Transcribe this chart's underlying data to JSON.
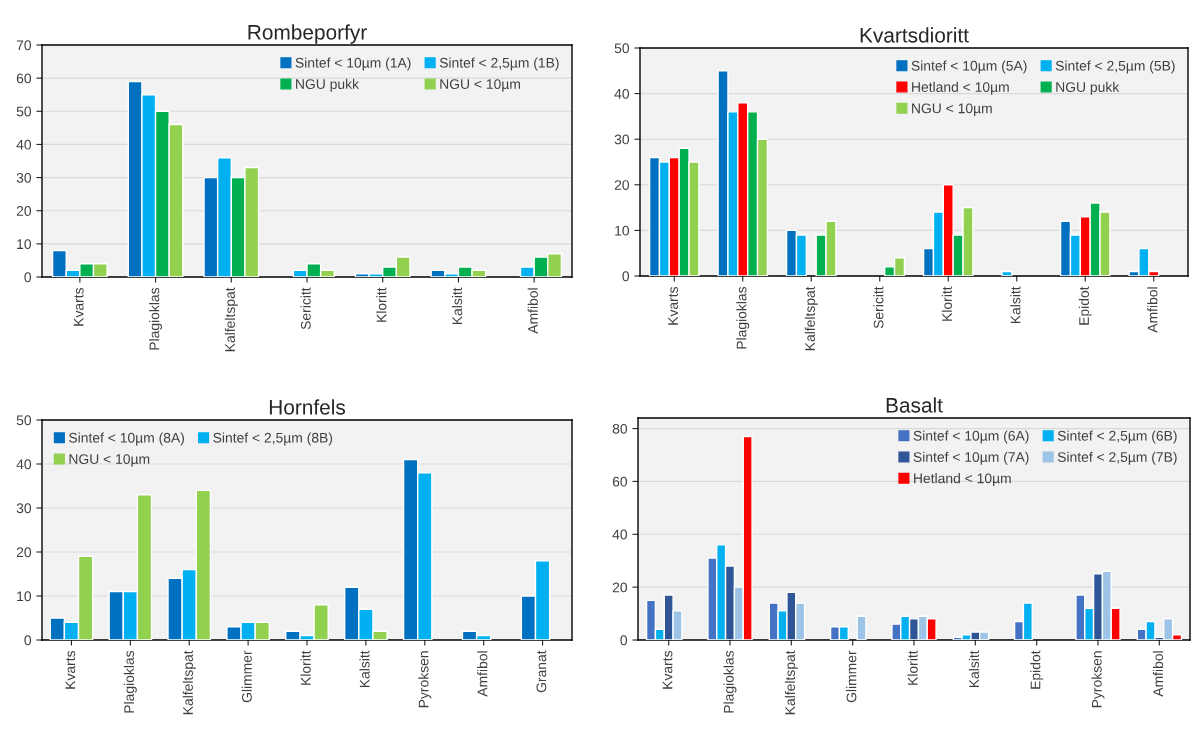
{
  "chart_data": [
    {
      "type": "bar",
      "title": "Rombeporfyr",
      "categories": [
        "Kvarts",
        "Plagioklas",
        "Kalfeltspat",
        "Sericitt",
        "Kloritt",
        "Kalsitt",
        "Amfibol"
      ],
      "ylim": [
        0,
        70
      ],
      "yticks": [
        0,
        10,
        20,
        30,
        40,
        50,
        60,
        70
      ],
      "grid": "y",
      "legend": "top right",
      "series": [
        {
          "name": "Sintef < 10µm (1A)",
          "color": "#0070c0",
          "values": [
            8,
            59,
            30,
            null,
            1,
            2,
            null
          ]
        },
        {
          "name": "Sintef < 2,5µm (1B)",
          "color": "#00b0f0",
          "values": [
            2,
            55,
            36,
            2,
            1,
            1,
            3
          ]
        },
        {
          "name": "NGU pukk",
          "color": "#00b050",
          "values": [
            4,
            50,
            30,
            4,
            3,
            3,
            6
          ]
        },
        {
          "name": "NGU < 10µm",
          "color": "#92d050",
          "values": [
            4,
            46,
            33,
            2,
            6,
            2,
            7
          ]
        }
      ]
    },
    {
      "type": "bar",
      "title": "Kvartsdioritt",
      "categories": [
        "Kvarts",
        "Plagioklas",
        "Kalfeltspat",
        "Sericitt",
        "Kloritt",
        "Kalsitt",
        "Epidot",
        "Amfibol"
      ],
      "ylim": [
        0,
        50
      ],
      "yticks": [
        0,
        10,
        20,
        30,
        40,
        50
      ],
      "grid": "y",
      "legend": "top right",
      "series": [
        {
          "name": "Sintef < 10µm (5A)",
          "color": "#0070c0",
          "values": [
            26,
            45,
            10,
            null,
            6,
            null,
            12,
            1
          ]
        },
        {
          "name": "Sintef < 2,5µm (5B)",
          "color": "#00b0f0",
          "values": [
            25,
            36,
            9,
            null,
            14,
            1,
            9,
            6
          ]
        },
        {
          "name": "Hetland < 10µm",
          "color": "#ff0000",
          "values": [
            26,
            38,
            null,
            null,
            20,
            null,
            13,
            1
          ]
        },
        {
          "name": "NGU pukk",
          "color": "#00b050",
          "values": [
            28,
            36,
            9,
            2,
            9,
            null,
            16,
            null
          ]
        },
        {
          "name": "NGU < 10µm",
          "color": "#92d050",
          "values": [
            25,
            30,
            12,
            4,
            15,
            null,
            14,
            null
          ]
        }
      ]
    },
    {
      "type": "bar",
      "title": "Hornfels",
      "categories": [
        "Kvarts",
        "Plagioklas",
        "Kalfeltspat",
        "Glimmer",
        "Kloritt",
        "Kalsitt",
        "Pyroksen",
        "Amfibol",
        "Granat"
      ],
      "ylim": [
        0,
        50
      ],
      "yticks": [
        0,
        10,
        20,
        30,
        40,
        50
      ],
      "grid": "y",
      "legend": "top left",
      "series": [
        {
          "name": "Sintef < 10µm (8A)",
          "color": "#0070c0",
          "values": [
            5,
            11,
            14,
            3,
            2,
            12,
            41,
            2,
            10
          ]
        },
        {
          "name": "Sintef < 2,5µm (8B)",
          "color": "#00b0f0",
          "values": [
            4,
            11,
            16,
            4,
            1,
            7,
            38,
            1,
            18
          ]
        },
        {
          "name": "NGU < 10µm",
          "color": "#92d050",
          "values": [
            19,
            33,
            34,
            4,
            8,
            2,
            null,
            null,
            null
          ]
        }
      ]
    },
    {
      "type": "bar",
      "title": "Basalt",
      "categories": [
        "Kvarts",
        "Plagioklas",
        "Kalfeltspat",
        "Glimmer",
        "Kloritt",
        "Kalsitt",
        "Epidot",
        "Pyroksen",
        "Amfibol"
      ],
      "ylim": [
        0,
        84
      ],
      "yticks": [
        0,
        20,
        40,
        60,
        80
      ],
      "grid": "y",
      "legend": "top right",
      "series": [
        {
          "name": "Sintef < 10µm (6A)",
          "color": "#4472c4",
          "values": [
            15,
            31,
            14,
            5,
            6,
            1,
            7,
            17,
            4
          ]
        },
        {
          "name": "Sintef < 2,5µm (6B)",
          "color": "#00b0f0",
          "values": [
            4,
            36,
            11,
            5,
            9,
            2,
            14,
            12,
            7
          ]
        },
        {
          "name": "Sintef < 10µm (7A)",
          "color": "#2f5597",
          "values": [
            17,
            28,
            18,
            null,
            8,
            3,
            null,
            25,
            1
          ]
        },
        {
          "name": "Sintef < 2,5µm (7B)",
          "color": "#9dc3e6",
          "values": [
            11,
            20,
            14,
            9,
            9,
            3,
            null,
            26,
            8
          ]
        },
        {
          "name": "Hetland < 10µm",
          "color": "#ff0000",
          "values": [
            null,
            77,
            null,
            null,
            8,
            null,
            null,
            12,
            2
          ]
        }
      ]
    }
  ]
}
